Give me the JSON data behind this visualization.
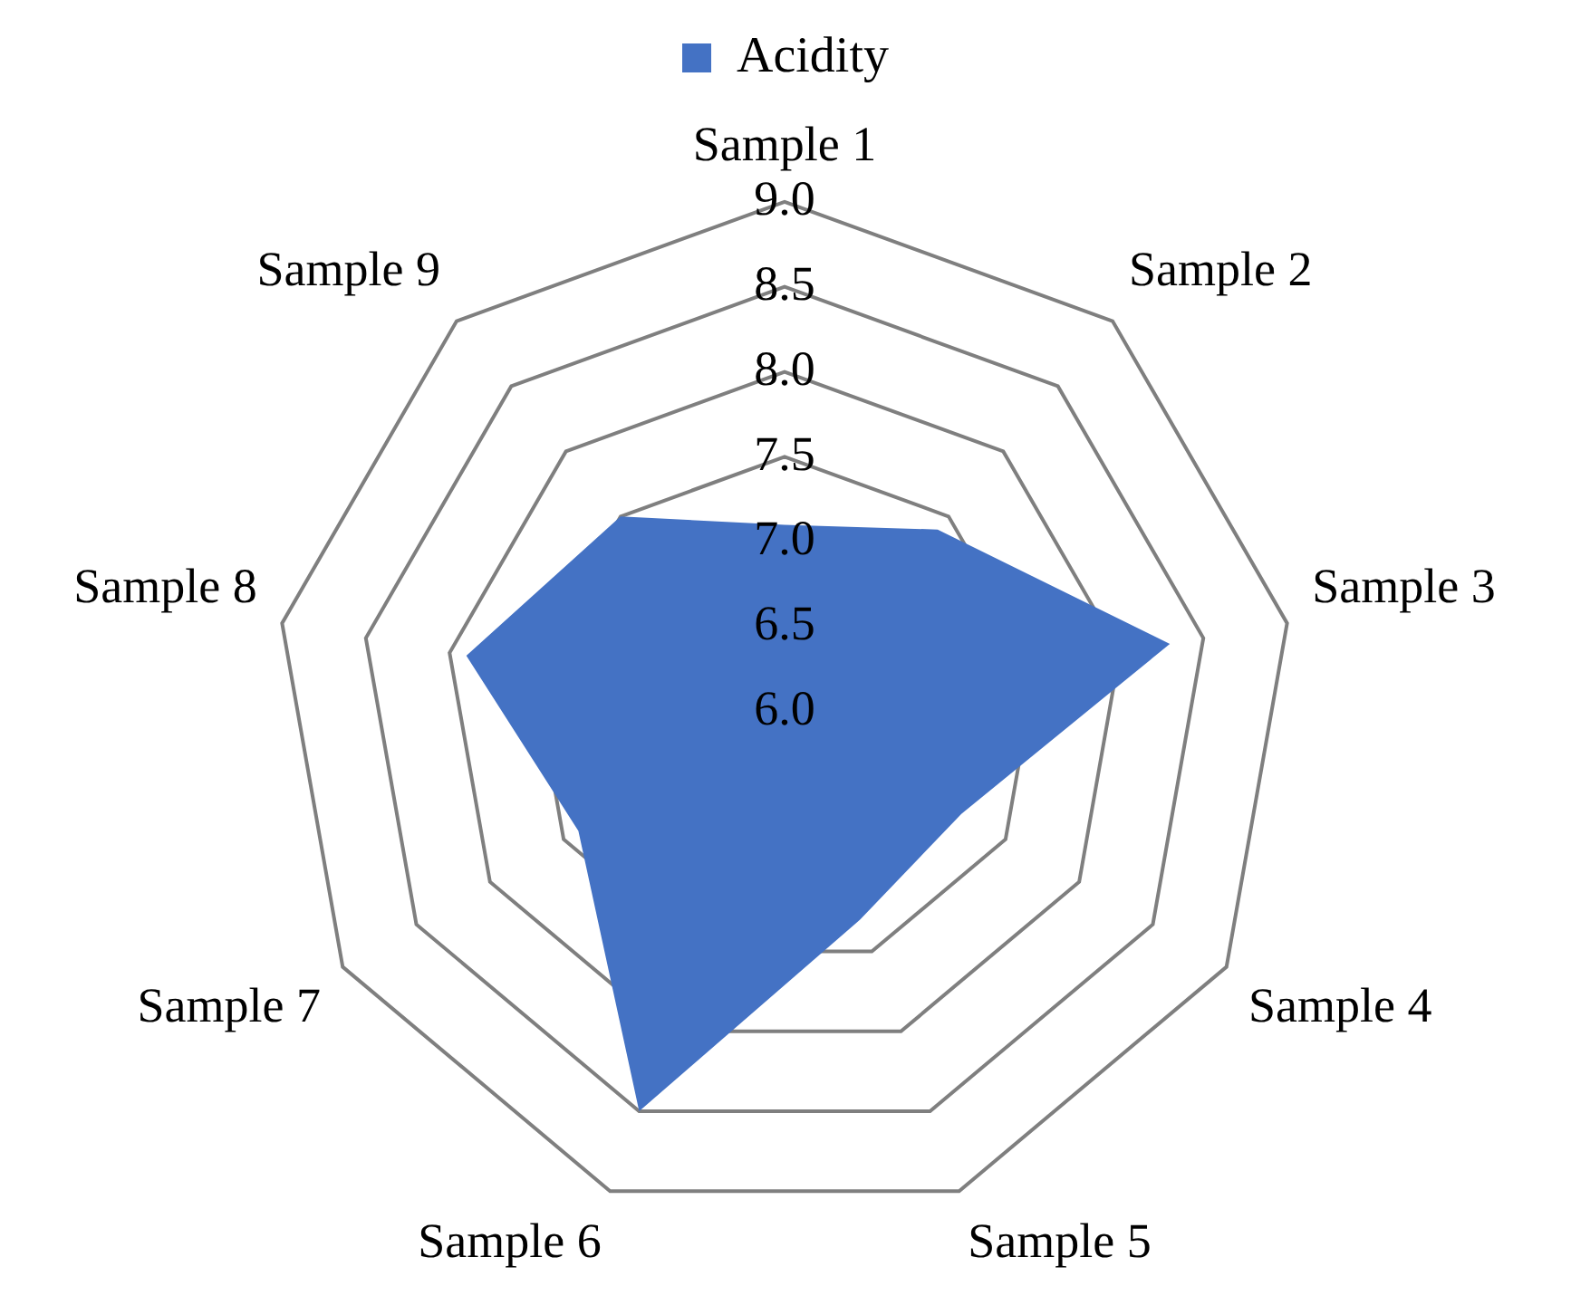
{
  "chart_data": {
    "type": "radar",
    "categories": [
      "Sample 1",
      "Sample 2",
      "Sample 3",
      "Sample 4",
      "Sample 5",
      "Sample 6",
      "Sample 7",
      "Sample 8",
      "Sample 9"
    ],
    "series": [
      {
        "name": "Acidity",
        "color": "#4472c4",
        "values": [
          7.1,
          7.4,
          8.3,
          7.2,
          7.3,
          8.5,
          7.4,
          7.9,
          7.5
        ]
      }
    ],
    "ylim": [
      6.0,
      9.0
    ],
    "yticks": [
      {
        "value": 6,
        "label": "6.0"
      },
      {
        "value": 6.5,
        "label": "6.5"
      },
      {
        "value": 7,
        "label": "7.0"
      },
      {
        "value": 7.5,
        "label": "7.5"
      },
      {
        "value": 8,
        "label": "8.0"
      },
      {
        "value": 8.5,
        "label": "8.5"
      },
      {
        "value": 9,
        "label": "9.0"
      }
    ],
    "grid": true,
    "legend": "top",
    "marker": "none"
  }
}
